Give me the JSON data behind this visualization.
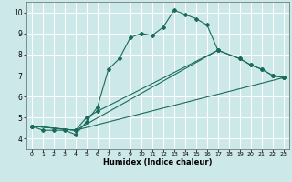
{
  "xlabel": "Humidex (Indice chaleur)",
  "bg_color": "#cce8e8",
  "line_color": "#1a6b5a",
  "grid_color": "#ffffff",
  "xlim": [
    -0.5,
    23.5
  ],
  "ylim": [
    3.5,
    10.5
  ],
  "xticks": [
    0,
    1,
    2,
    3,
    4,
    5,
    6,
    7,
    8,
    9,
    10,
    11,
    12,
    13,
    14,
    15,
    16,
    17,
    18,
    19,
    20,
    21,
    22,
    23
  ],
  "yticks": [
    4,
    5,
    6,
    7,
    8,
    9,
    10
  ],
  "series1_x": [
    0,
    1,
    2,
    3,
    4,
    5,
    6,
    7,
    8,
    9,
    10,
    11,
    12,
    13,
    14,
    15,
    16,
    17
  ],
  "series1_y": [
    4.6,
    4.4,
    4.4,
    4.4,
    4.2,
    4.8,
    5.5,
    7.3,
    7.8,
    8.8,
    9.0,
    8.9,
    9.3,
    10.1,
    9.9,
    9.7,
    9.4,
    8.2
  ],
  "series2_x": [
    0,
    4,
    17,
    19,
    20,
    21,
    22,
    23
  ],
  "series2_y": [
    4.6,
    4.4,
    8.2,
    7.8,
    7.5,
    7.3,
    7.0,
    6.9
  ],
  "series3_x": [
    0,
    4,
    5,
    6,
    17,
    19,
    20,
    21,
    22,
    23
  ],
  "series3_y": [
    4.6,
    4.4,
    5.0,
    5.3,
    8.2,
    7.8,
    7.5,
    7.3,
    7.0,
    6.9
  ],
  "series4_x": [
    0,
    4,
    23
  ],
  "series4_y": [
    4.6,
    4.4,
    6.9
  ]
}
